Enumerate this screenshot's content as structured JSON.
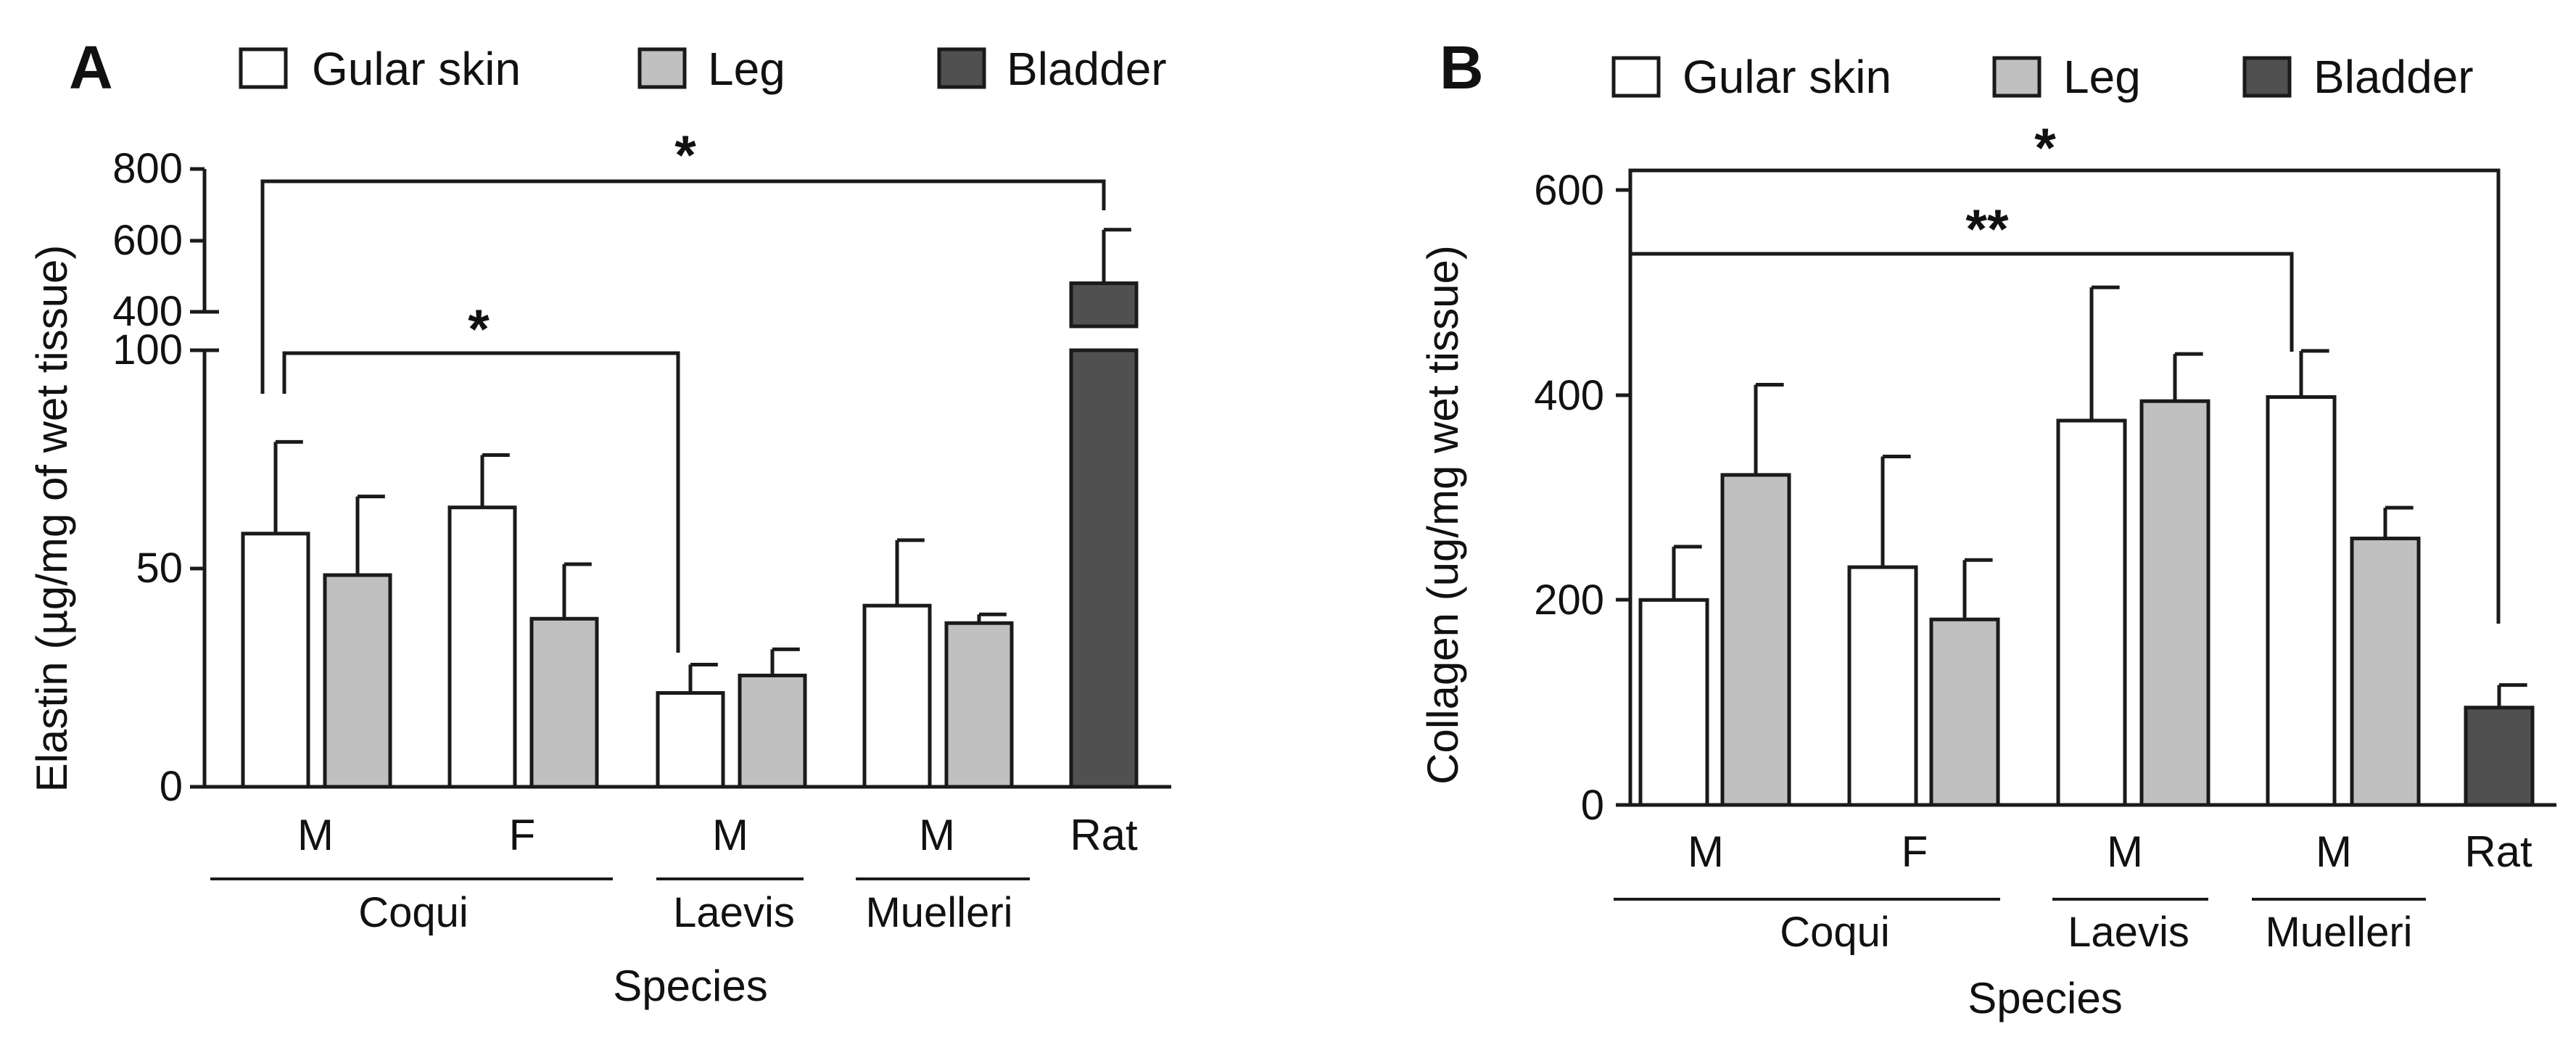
{
  "legend_labels": [
    "Gular skin",
    "Leg",
    "Bladder"
  ],
  "colors": {
    "gular": "#ffffff",
    "leg": "#c0c0c0",
    "bladder": "#505050",
    "stroke": "#1a1a1a"
  },
  "chart_data": [
    {
      "panel": "A",
      "type": "bar",
      "ylabel": "Elastin (µg/mg of wet tissue)",
      "xlabel": "Species",
      "axis_break": true,
      "ylim_lower": [
        0,
        100
      ],
      "ylim_upper": [
        400,
        800
      ],
      "yticks_lower": [
        "0",
        "50",
        "100"
      ],
      "yticks_upper": [
        "400",
        "600",
        "800"
      ],
      "groups": [
        {
          "label": "M",
          "bars": [
            {
              "series": "gular",
              "value": 58,
              "err": 21
            },
            {
              "series": "leg",
              "value": 48.5,
              "err": 18
            }
          ]
        },
        {
          "label": "F",
          "bars": [
            {
              "series": "gular",
              "value": 64,
              "err": 12
            },
            {
              "series": "leg",
              "value": 38.5,
              "err": 12.5
            }
          ]
        },
        {
          "label": "M",
          "bars": [
            {
              "series": "gular",
              "value": 21.5,
              "err": 6.5
            },
            {
              "series": "leg",
              "value": 25.5,
              "err": 6
            }
          ]
        },
        {
          "label": "M",
          "bars": [
            {
              "series": "gular",
              "value": 41.5,
              "err": 15
            },
            {
              "series": "leg",
              "value": 37.5,
              "err": 2
            }
          ]
        },
        {
          "label": "Rat",
          "bars": [
            {
              "series": "bladder",
              "value": 480,
              "err": 150
            }
          ]
        }
      ],
      "species": [
        "Coqui",
        "Laevis",
        "Muelleri"
      ],
      "significance": [
        "*",
        "*"
      ]
    },
    {
      "panel": "B",
      "type": "bar",
      "ylabel": "Collagen (ug/mg wet tissue)",
      "xlabel": "Species",
      "ylim": [
        0,
        600
      ],
      "yticks": [
        "0",
        "200",
        "400",
        "600"
      ],
      "groups": [
        {
          "label": "M",
          "bars": [
            {
              "series": "gular",
              "value": 200,
              "err": 52
            },
            {
              "series": "leg",
              "value": 322,
              "err": 88
            }
          ]
        },
        {
          "label": "F",
          "bars": [
            {
              "series": "gular",
              "value": 232,
              "err": 108
            },
            {
              "series": "leg",
              "value": 181,
              "err": 58
            }
          ]
        },
        {
          "label": "M",
          "bars": [
            {
              "series": "gular",
              "value": 375,
              "err": 130
            },
            {
              "series": "leg",
              "value": 394,
              "err": 46
            }
          ]
        },
        {
          "label": "M",
          "bars": [
            {
              "series": "gular",
              "value": 398,
              "err": 45
            },
            {
              "series": "leg",
              "value": 260,
              "err": 30
            }
          ]
        },
        {
          "label": "Rat",
          "bars": [
            {
              "series": "bladder",
              "value": 95,
              "err": 22
            }
          ]
        }
      ],
      "species": [
        "Coqui",
        "Laevis",
        "Muelleri"
      ],
      "significance": [
        "*",
        "**"
      ]
    }
  ]
}
